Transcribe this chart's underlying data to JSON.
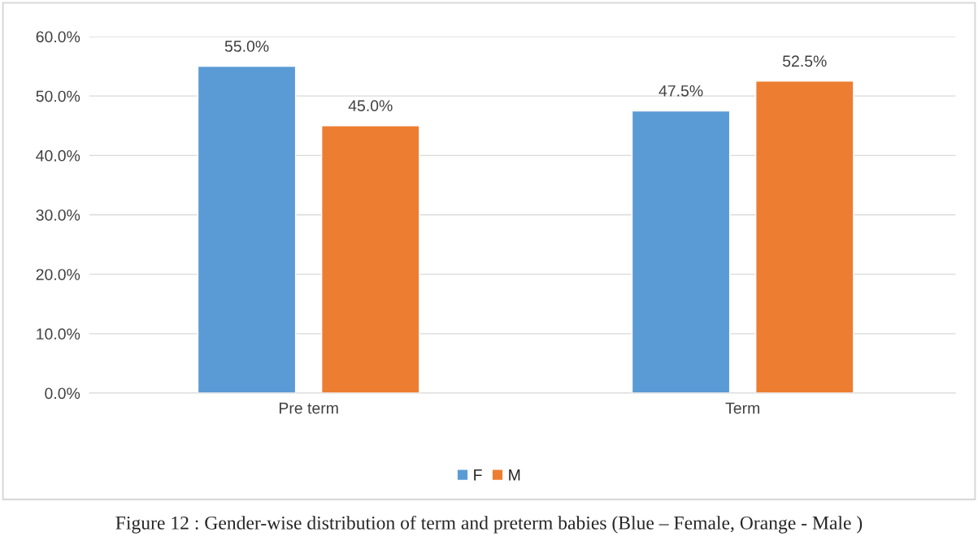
{
  "chart_data": {
    "type": "bar",
    "categories": [
      "Pre term",
      "Term"
    ],
    "series": [
      {
        "name": "F",
        "color": "#5b9bd5",
        "values": [
          55.0,
          47.5
        ],
        "value_labels": [
          "55.0%",
          "47.5%"
        ]
      },
      {
        "name": "M",
        "color": "#ed7d31",
        "values": [
          45.0,
          52.5
        ],
        "value_labels": [
          "45.0%",
          "52.5%"
        ]
      }
    ],
    "ylim": [
      0,
      60
    ],
    "yticks": [
      {
        "value": 0,
        "label": "0.0%"
      },
      {
        "value": 10,
        "label": "10.0%"
      },
      {
        "value": 20,
        "label": "20.0%"
      },
      {
        "value": 30,
        "label": "30.0%"
      },
      {
        "value": 40,
        "label": "40.0%"
      },
      {
        "value": 50,
        "label": "50.0%"
      },
      {
        "value": 60,
        "label": "60.0%"
      }
    ],
    "grid": "y",
    "legend": "bottom",
    "annotations": [
      "Figure 12 : Gender-wise distribution of term and preterm babies (Blue – Female, Orange - Male )"
    ]
  }
}
